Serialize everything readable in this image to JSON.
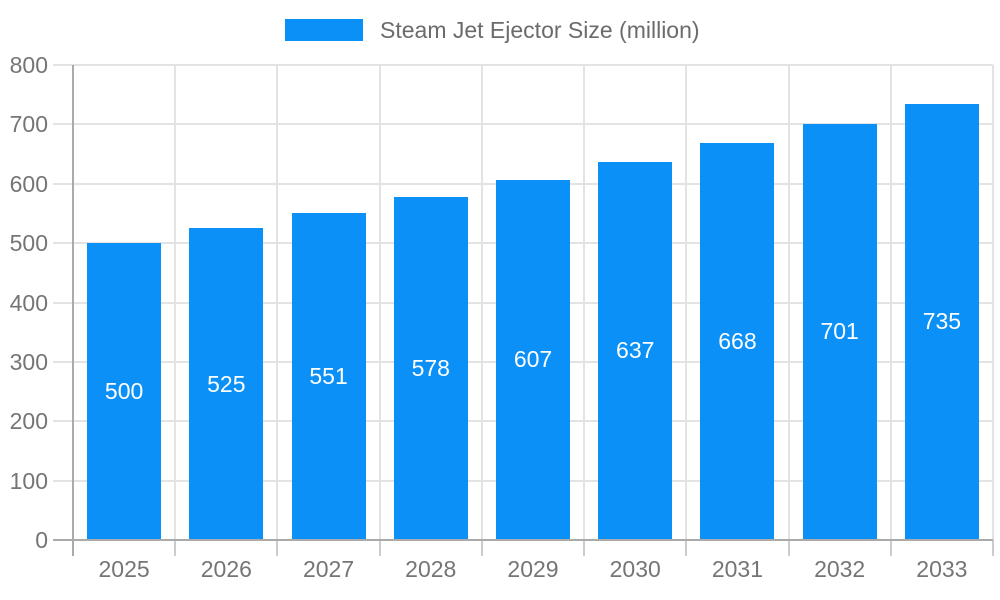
{
  "chart_data": {
    "type": "bar",
    "title": "",
    "legend": "Steam Jet Ejector Size (million)",
    "legend_position": "top",
    "categories": [
      "2025",
      "2026",
      "2027",
      "2028",
      "2029",
      "2030",
      "2031",
      "2032",
      "2033"
    ],
    "values": [
      500,
      525,
      551,
      578,
      607,
      637,
      668,
      701,
      735
    ],
    "xlabel": "",
    "ylabel": "",
    "ylim": [
      0,
      800
    ],
    "ytick_interval": 100,
    "ytick_labels": [
      "0",
      "100",
      "200",
      "300",
      "400",
      "500",
      "600",
      "700",
      "800"
    ],
    "grid": true,
    "value_labels_shown": true,
    "colors": {
      "bar": "#0b90f8",
      "grid": "#e3e3e3",
      "axis": "#aaaaaa",
      "tick": "#cccccc",
      "axis_label": "#757575",
      "legend_text": "#6b6b6b",
      "value_label": "#ffffff",
      "background": "#ffffff"
    }
  }
}
